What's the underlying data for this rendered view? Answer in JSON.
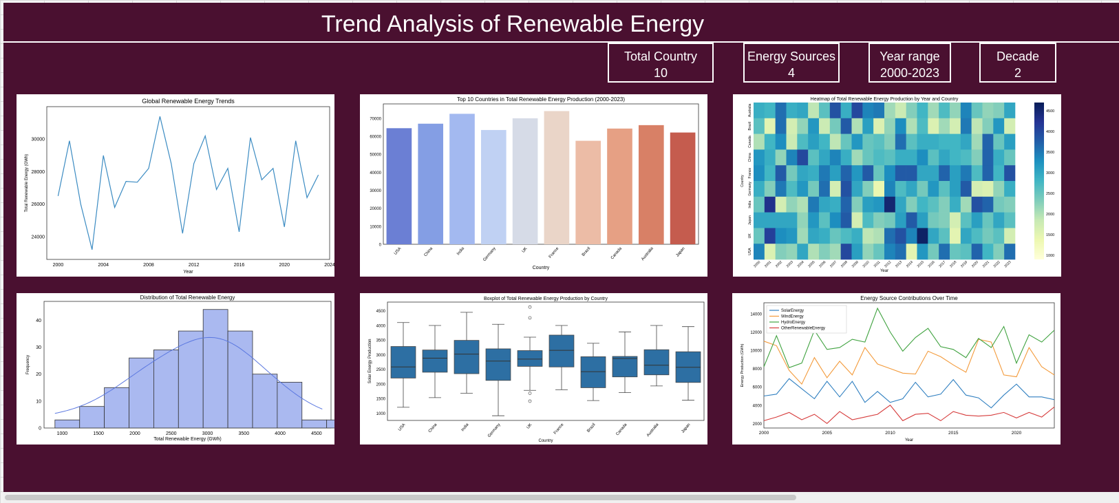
{
  "header": {
    "title": "Trend Analysis of Renewable Energy"
  },
  "kpis": [
    {
      "label": "Total Country",
      "value": "10"
    },
    {
      "label": "Energy Sources",
      "value": "4"
    },
    {
      "label": "Year range",
      "value": "2000-2023"
    },
    {
      "label": "Decade",
      "value": "2"
    }
  ],
  "colors": {
    "background": "#4a1030",
    "line": "#3b8bc2",
    "hist": "#aab9f0",
    "box": "#2d6fa3"
  },
  "chart_data": [
    {
      "type": "line",
      "title": "Global Renewable Energy Trends",
      "xlabel": "Year",
      "ylabel": "Total Renewable Energy (GWh)",
      "x": [
        2000,
        2001,
        2002,
        2003,
        2004,
        2005,
        2006,
        2007,
        2008,
        2009,
        2010,
        2011,
        2012,
        2013,
        2014,
        2015,
        2016,
        2017,
        2018,
        2019,
        2020,
        2021,
        2022,
        2023
      ],
      "y": [
        26500,
        29900,
        26000,
        23200,
        29000,
        25800,
        27400,
        27350,
        28200,
        31400,
        28500,
        24200,
        28500,
        30200,
        26900,
        28200,
        24300,
        30100,
        27500,
        28200,
        24600,
        29900,
        26400,
        27800
      ],
      "ylim": [
        22600,
        32000
      ],
      "xlim": [
        1999,
        2024
      ],
      "xticks": [
        "2000",
        "2004",
        "2008",
        "2012",
        "2016",
        "2020",
        "2024"
      ],
      "yticks": [
        "24000",
        "26000",
        "28000",
        "30000"
      ]
    },
    {
      "type": "bar",
      "title": "Top 10 Countries in Total Renewable Energy Production (2000-2023)",
      "xlabel": "Country",
      "ylabel": "",
      "categories": [
        "USA",
        "China",
        "India",
        "Germany",
        "UK",
        "France",
        "Brazil",
        "Canada",
        "Australia",
        "Japan"
      ],
      "values": [
        64500,
        67000,
        72500,
        63500,
        70000,
        74000,
        57500,
        64300,
        66200,
        62100
      ],
      "ylim": [
        0,
        78000
      ],
      "yticks": [
        "0",
        "10000",
        "20000",
        "30000",
        "40000",
        "50000",
        "60000",
        "70000"
      ],
      "colors": [
        "#6b7fd4",
        "#849ee4",
        "#a3b9f0",
        "#c0d1f3",
        "#d6dbe7",
        "#ead5c8",
        "#ecbca6",
        "#e6a084",
        "#d88066",
        "#c55c4e"
      ]
    },
    {
      "type": "heatmap",
      "title": "Heatmap of Total Renewable Energy Production by Year and Country",
      "xlabel": "Year",
      "ylabel": "Country",
      "rows": [
        "Australia",
        "Brazil",
        "Canada",
        "China",
        "France",
        "Germany",
        "India",
        "Japan",
        "UK",
        "USA"
      ],
      "cols": [
        "2000",
        "2001",
        "2002",
        "2003",
        "2004",
        "2005",
        "2006",
        "2007",
        "2008",
        "2009",
        "2010",
        "2011",
        "2012",
        "2013",
        "2014",
        "2015",
        "2016",
        "2017",
        "2018",
        "2019",
        "2020",
        "2021",
        "2022",
        "2023"
      ],
      "values": [
        [
          2900,
          2800,
          3600,
          2900,
          3000,
          1900,
          2600,
          3900,
          2900,
          4000,
          3400,
          3500,
          2100,
          1800,
          2300,
          2800,
          2100,
          2700,
          2200,
          3400,
          2500,
          2200,
          2300,
          3000
        ],
        [
          2600,
          1500,
          3600,
          1700,
          2200,
          3200,
          1800,
          2400,
          3800,
          2000,
          3100,
          1600,
          2200,
          3300,
          2000,
          2700,
          1600,
          2100,
          1700,
          3500,
          1900,
          2300,
          3200,
          1700
        ],
        [
          2000,
          2800,
          3300,
          1800,
          2700,
          3100,
          2800,
          1900,
          2500,
          3200,
          2500,
          2600,
          2300,
          3600,
          2600,
          2900,
          2900,
          2800,
          2800,
          3000,
          2100,
          3700,
          2500,
          3100
        ],
        [
          3200,
          2900,
          2200,
          3400,
          4000,
          2600,
          3000,
          3400,
          2900,
          2100,
          2500,
          2700,
          2600,
          2900,
          2900,
          3300,
          2600,
          3000,
          2800,
          2700,
          2300,
          3700,
          2900,
          2500
        ],
        [
          3300,
          2800,
          3800,
          2400,
          3000,
          2900,
          3500,
          3100,
          3700,
          3200,
          3800,
          2500,
          3300,
          3800,
          3800,
          3000,
          3000,
          3700,
          3100,
          3500,
          2700,
          3700,
          2800,
          3900
        ],
        [
          2900,
          2300,
          3500,
          2700,
          3200,
          2400,
          3600,
          1700,
          3900,
          3000,
          2300,
          1400,
          3400,
          2700,
          3000,
          2400,
          3200,
          2600,
          3100,
          3800,
          1700,
          1600,
          2200,
          2900
        ],
        [
          2500,
          4300,
          1700,
          2200,
          2000,
          3500,
          3000,
          2900,
          3700,
          2300,
          3100,
          3200,
          4500,
          3000,
          2300,
          2800,
          2600,
          2300,
          2900,
          2100,
          3900,
          3700,
          2400,
          2300
        ],
        [
          3000,
          3000,
          3000,
          3000,
          2200,
          3200,
          2600,
          3300,
          3800,
          1700,
          2700,
          2300,
          2400,
          3100,
          3800,
          3100,
          2400,
          2300,
          1700,
          2600,
          3100,
          2500,
          3000,
          2600
        ],
        [
          2500,
          4100,
          3300,
          3200,
          2100,
          3000,
          2900,
          2500,
          2700,
          2900,
          1900,
          2000,
          3600,
          3900,
          3400,
          4600,
          3000,
          2600,
          1500,
          3000,
          2700,
          2400,
          2600,
          1700
        ],
        [
          3400,
          1600,
          2300,
          2200,
          3000,
          2000,
          2300,
          2100,
          4000,
          3100,
          2200,
          2500,
          3400,
          3600,
          1500,
          3200,
          2400,
          3600,
          2500,
          2600,
          3700,
          2800,
          2300,
          3600
        ]
      ],
      "vmin": 900,
      "vmax": 4700,
      "colorbar_ticks": [
        "1000",
        "1500",
        "2000",
        "2500",
        "3000",
        "3500",
        "4000",
        "4500"
      ]
    },
    {
      "type": "histogram",
      "title": "Distribution of Total Renewable Energy",
      "xlabel": "Total Renewable Energy (GWh)",
      "ylabel": "Frequency",
      "bin_start": 900,
      "bin_width": 340,
      "counts": [
        3,
        8,
        15,
        26,
        29,
        36,
        44,
        36,
        20,
        17,
        3,
        3
      ],
      "xlim": [
        750,
        4700
      ],
      "ylim": [
        0,
        47
      ],
      "xticks": [
        "1000",
        "1500",
        "2000",
        "2500",
        "3000",
        "3500",
        "4000",
        "4500"
      ],
      "yticks": [
        "0",
        "10",
        "20",
        "30",
        "40"
      ]
    },
    {
      "type": "box",
      "title": "Boxplot of Total Renewable Energy Production by Country",
      "xlabel": "Country",
      "ylabel": "Solar Energy Production",
      "categories": [
        "USA",
        "China",
        "India",
        "Germany",
        "UK",
        "France",
        "Brazil",
        "Canada",
        "Australia",
        "Japan"
      ],
      "boxes": [
        {
          "min": 1200,
          "q1": 2200,
          "median": 2580,
          "q3": 3280,
          "max": 4100,
          "outliers": []
        },
        {
          "min": 1530,
          "q1": 2400,
          "median": 2880,
          "q3": 3160,
          "max": 4000,
          "outliers": []
        },
        {
          "min": 1680,
          "q1": 2350,
          "median": 3020,
          "q3": 3490,
          "max": 4450,
          "outliers": []
        },
        {
          "min": 910,
          "q1": 2120,
          "median": 2780,
          "q3": 3200,
          "max": 4040,
          "outliers": []
        },
        {
          "min": 1780,
          "q1": 2600,
          "median": 2850,
          "q3": 3140,
          "max": 3600,
          "outliers": [
            4630,
            4260,
            1680,
            1410
          ]
        },
        {
          "min": 1800,
          "q1": 2580,
          "median": 3150,
          "q3": 3670,
          "max": 4000,
          "outliers": []
        },
        {
          "min": 1430,
          "q1": 1870,
          "median": 2420,
          "q3": 2930,
          "max": 3390,
          "outliers": []
        },
        {
          "min": 1700,
          "q1": 2240,
          "median": 2870,
          "q3": 2940,
          "max": 3780,
          "outliers": []
        },
        {
          "min": 1930,
          "q1": 2310,
          "median": 2640,
          "q3": 3170,
          "max": 4000,
          "outliers": []
        },
        {
          "min": 1440,
          "q1": 2050,
          "median": 2570,
          "q3": 3100,
          "max": 3960,
          "outliers": []
        }
      ],
      "ylim": [
        750,
        4800
      ],
      "yticks": [
        "1000",
        "1500",
        "2000",
        "2500",
        "3000",
        "3500",
        "4000",
        "4500"
      ]
    },
    {
      "type": "line",
      "title": "Energy Source Contributions Over Time",
      "xlabel": "Year",
      "ylabel": "Energy Production (GWh)",
      "x": [
        2000,
        2001,
        2002,
        2003,
        2004,
        2005,
        2006,
        2007,
        2008,
        2009,
        2010,
        2011,
        2012,
        2013,
        2014,
        2015,
        2016,
        2017,
        2018,
        2019,
        2020,
        2021,
        2022,
        2023
      ],
      "series": [
        {
          "name": "SolarEnergy",
          "color": "#2f7fc0",
          "values": [
            5000,
            5200,
            6900,
            5800,
            4700,
            6600,
            4900,
            6600,
            4300,
            5500,
            4300,
            4700,
            6500,
            4900,
            5200,
            6800,
            5100,
            4800,
            3700,
            5100,
            6300,
            4900,
            4900,
            4600
          ]
        },
        {
          "name": "WindEnergy",
          "color": "#f39a3a",
          "values": [
            11000,
            10500,
            7800,
            6300,
            9200,
            7000,
            8800,
            7300,
            10300,
            8500,
            8000,
            7500,
            7400,
            9900,
            9300,
            8400,
            7600,
            11200,
            10900,
            7300,
            7100,
            10300,
            8200,
            7300
          ]
        },
        {
          "name": "HydroEnergy",
          "color": "#3fa23f",
          "values": [
            8200,
            11600,
            8100,
            8600,
            12200,
            10100,
            10300,
            11200,
            10900,
            14600,
            12000,
            9900,
            11400,
            12400,
            10400,
            10100,
            9200,
            11300,
            10300,
            12600,
            8600,
            11700,
            10900,
            12200
          ]
        },
        {
          "name": "OtherRenewableEnergy",
          "color": "#d63b3b",
          "values": [
            2300,
            2700,
            3200,
            2400,
            3000,
            2000,
            3300,
            2400,
            2700,
            3000,
            4000,
            2300,
            3000,
            3100,
            2300,
            3300,
            2900,
            2800,
            2900,
            3200,
            2600,
            3200,
            2700,
            3800
          ]
        }
      ],
      "xlim": [
        2000,
        2023
      ],
      "ylim": [
        1500,
        15200
      ],
      "xticks": [
        "2000",
        "2005",
        "2010",
        "2015",
        "2020"
      ],
      "yticks": [
        "2000",
        "4000",
        "6000",
        "8000",
        "10000",
        "12000",
        "14000"
      ]
    }
  ]
}
